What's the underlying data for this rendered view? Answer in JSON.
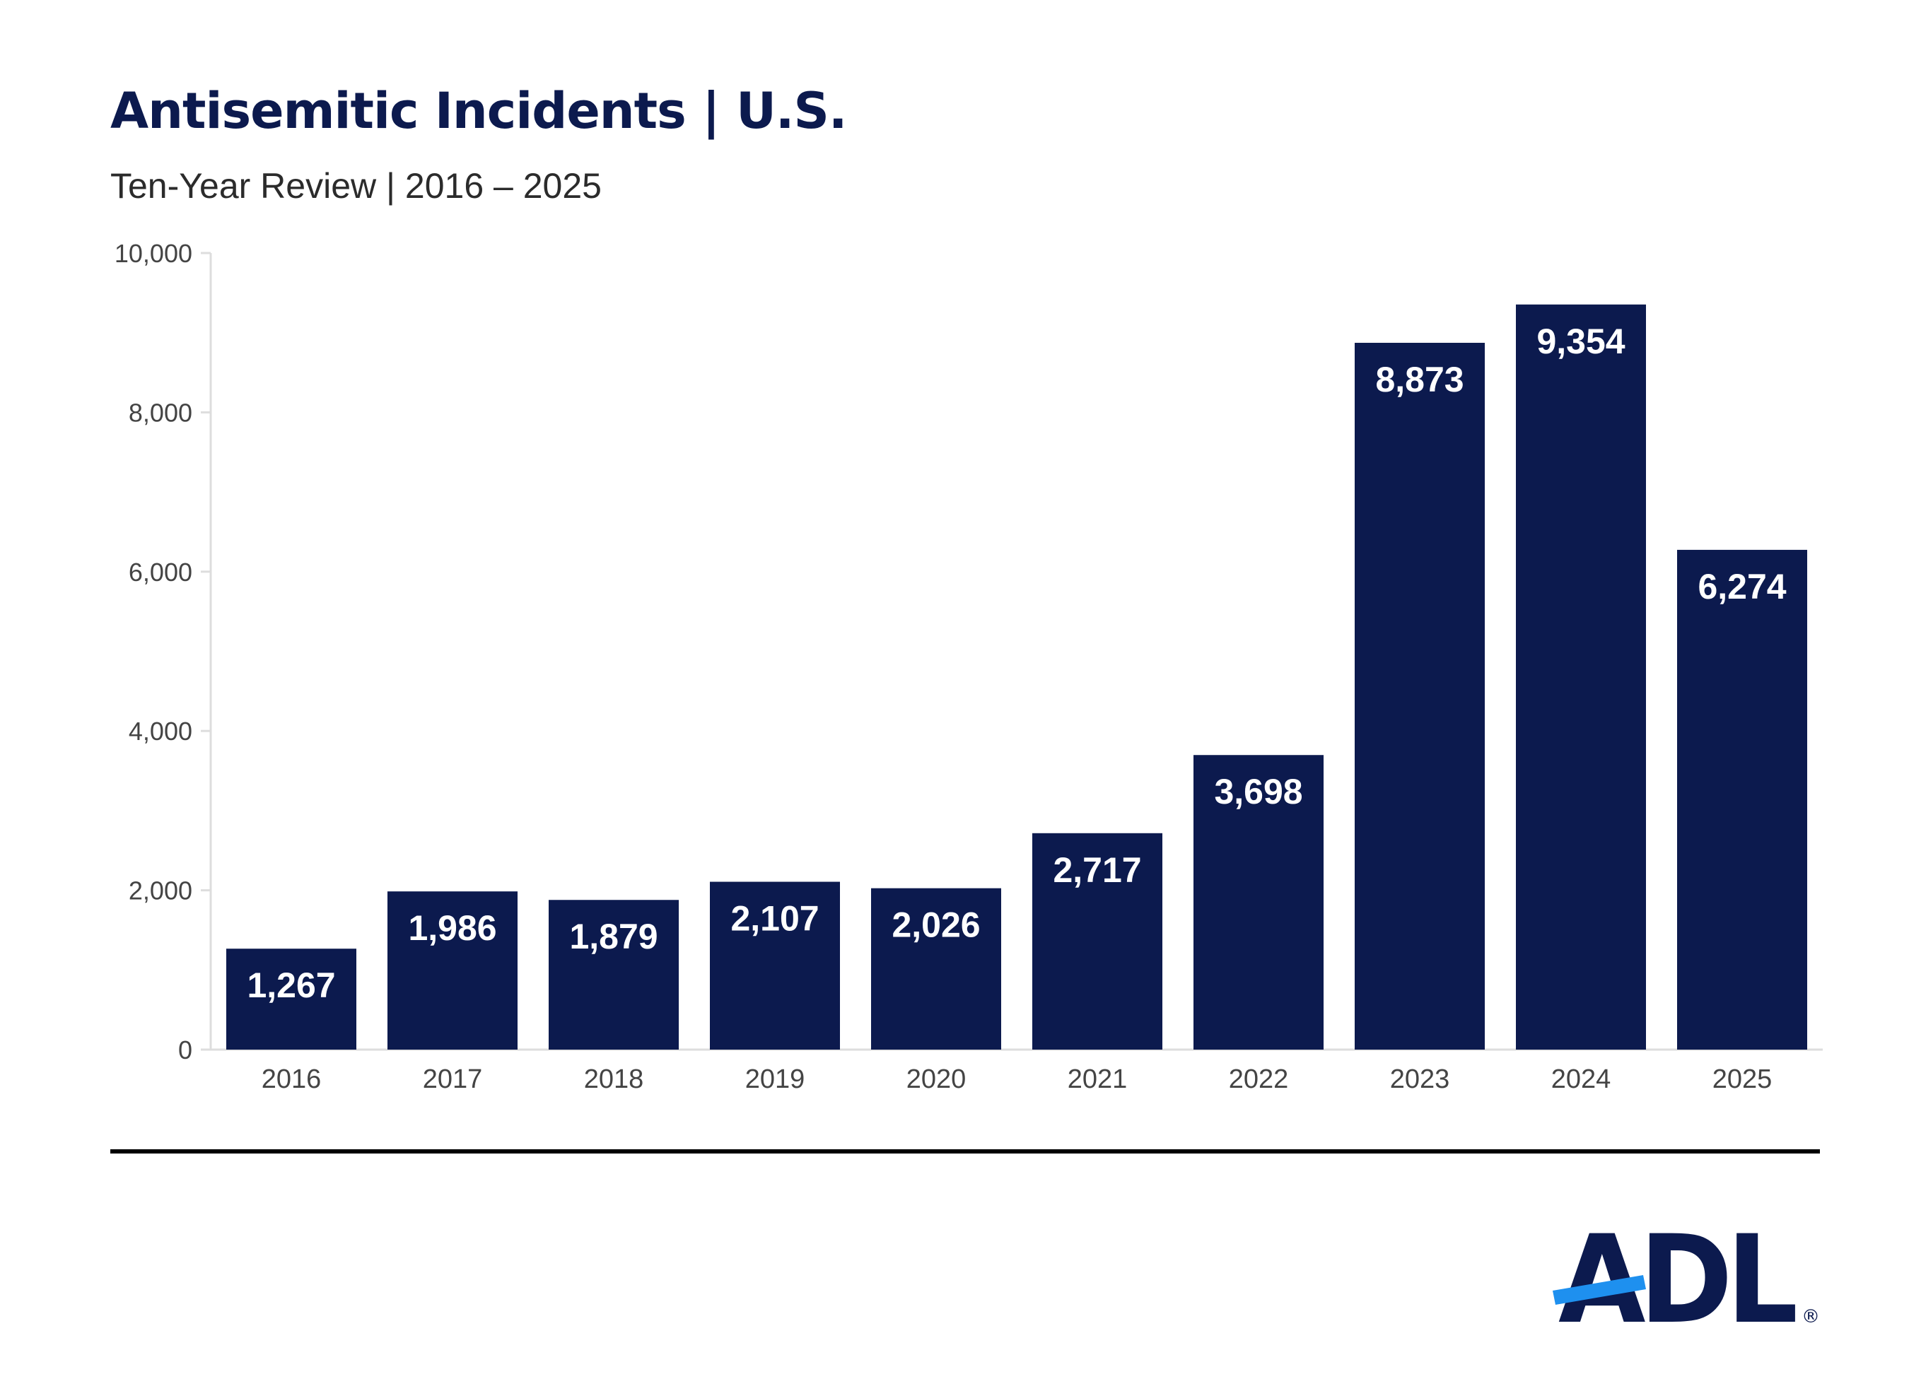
{
  "colors": {
    "bar": "#0c1a4e",
    "title": "#0c1a4e",
    "axis_text": "#444444",
    "axis_line": "#dddddd",
    "logo_navy": "#0c1a4e",
    "logo_blue": "#1e90ef"
  },
  "logo": {
    "text": "ADL",
    "registered": "®"
  },
  "chart_data": {
    "type": "bar",
    "title": "Antisemitic Incidents | U.S.",
    "subtitle": "Ten-Year Review | 2016 – 2025",
    "categories": [
      "2016",
      "2017",
      "2018",
      "2019",
      "2020",
      "2021",
      "2022",
      "2023",
      "2024",
      "2025"
    ],
    "values": [
      1267,
      1986,
      1879,
      2107,
      2026,
      2717,
      3698,
      8873,
      9354,
      6274
    ],
    "data_labels": [
      "1,267",
      "1,986",
      "1,879",
      "2,107",
      "2,026",
      "2,717",
      "3,698",
      "8,873",
      "9,354",
      "6,274"
    ],
    "ylim": [
      0,
      10000
    ],
    "yticks": [
      0,
      2000,
      4000,
      6000,
      8000,
      10000
    ],
    "ytick_labels": [
      "0",
      "2,000",
      "4,000",
      "6,000",
      "8,000",
      "10,000"
    ],
    "xlabel": "",
    "ylabel": "",
    "grid": false,
    "legend": "none"
  }
}
